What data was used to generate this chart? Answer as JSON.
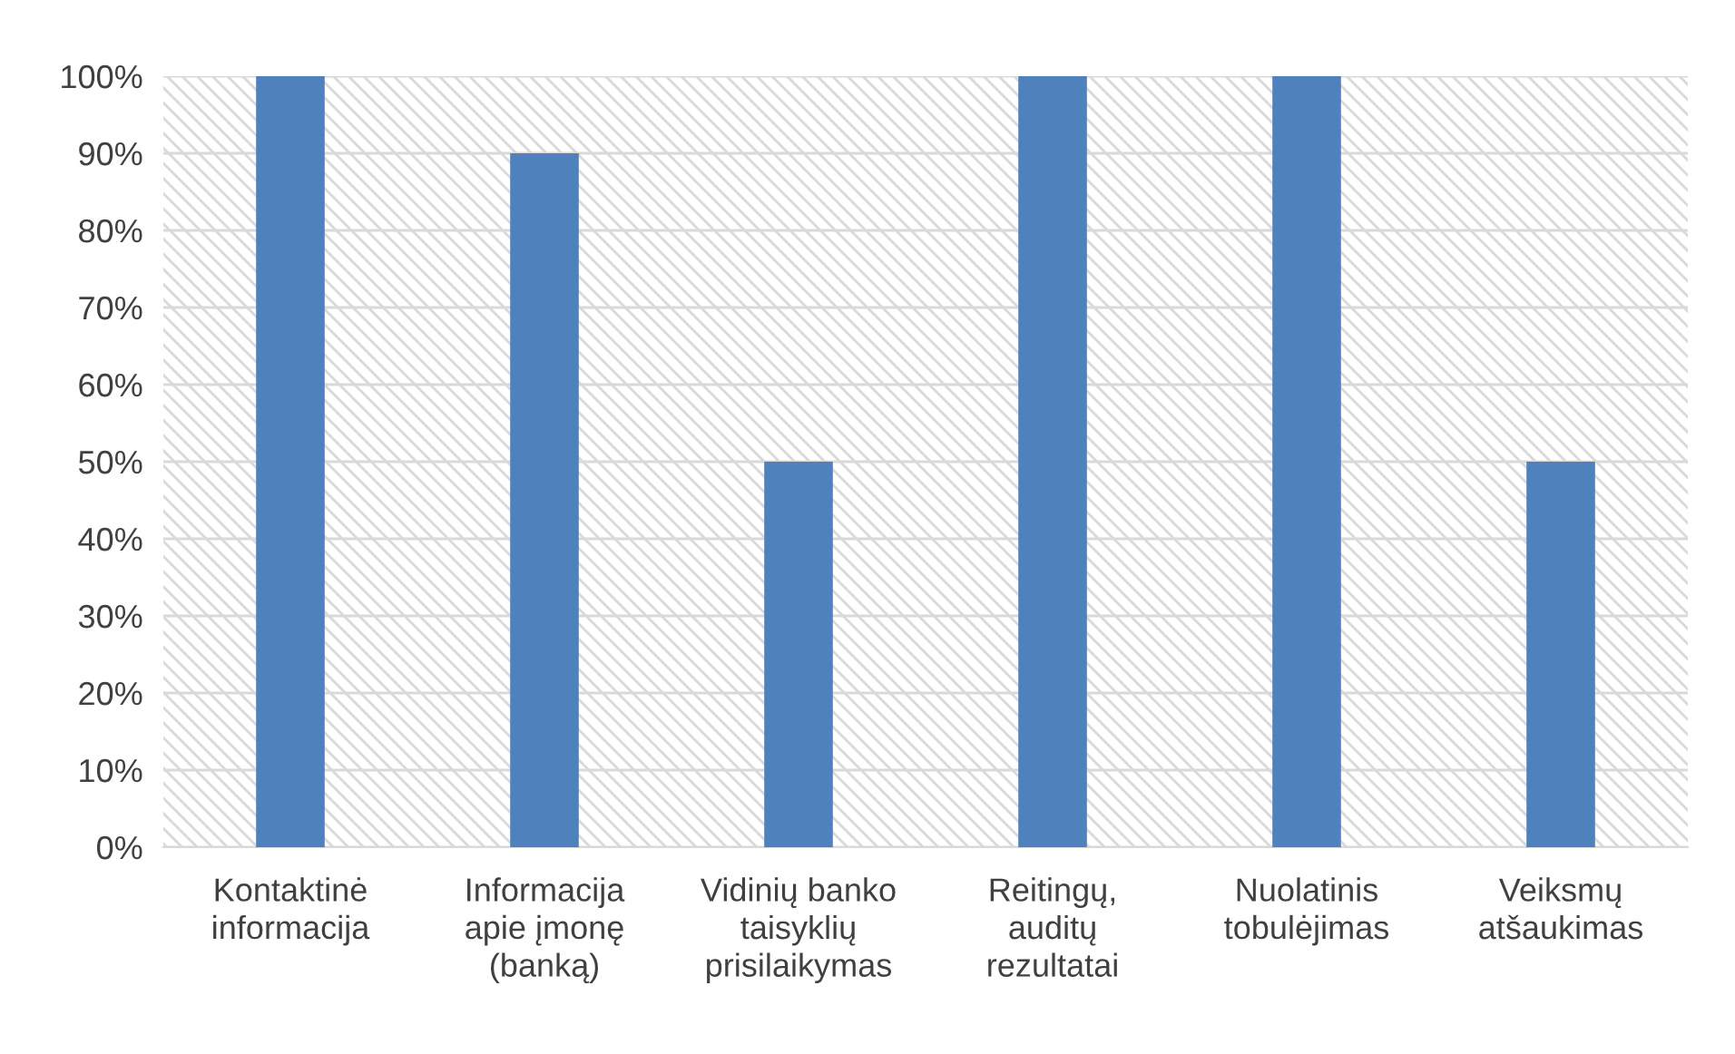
{
  "chart_data": {
    "type": "bar",
    "categories": [
      "Kontaktinė informacija",
      "Informacija apie įmonę (banką)",
      "Vidinių banko taisyklių prisilaikymas",
      "Reitingų, auditų rezultatai",
      "Nuolatinis tobulėjimas",
      "Veiksmų atšaukimas"
    ],
    "values": [
      100,
      90,
      50,
      100,
      100,
      50
    ],
    "color": "#4f81bd",
    "ylim": [
      0,
      100
    ],
    "yticks": [
      {
        "value": 0,
        "label": "0%"
      },
      {
        "value": 10,
        "label": "10%"
      },
      {
        "value": 20,
        "label": "20%"
      },
      {
        "value": 30,
        "label": "30%"
      },
      {
        "value": 40,
        "label": "40%"
      },
      {
        "value": 50,
        "label": "50%"
      },
      {
        "value": 60,
        "label": "60%"
      },
      {
        "value": 70,
        "label": "70%"
      },
      {
        "value": 80,
        "label": "80%"
      },
      {
        "value": 90,
        "label": "90%"
      },
      {
        "value": 100,
        "label": "100%"
      }
    ],
    "grid": "y"
  }
}
